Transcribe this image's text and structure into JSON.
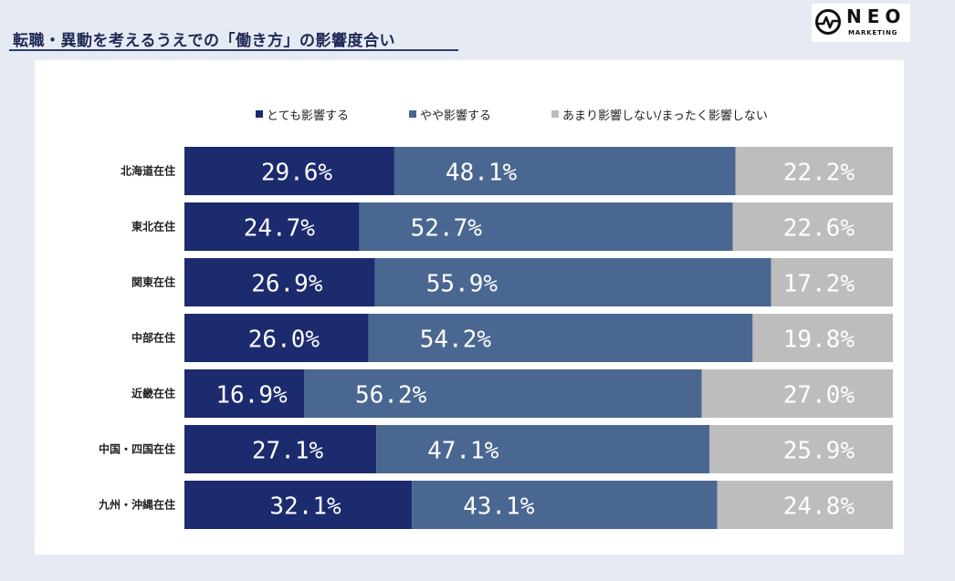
{
  "header": {
    "title": "転職・異動を考えるうえでの「働き方」の影響度合い"
  },
  "logo": {
    "word": "NEO",
    "sub": "MARKETING",
    "icon": "pulse-circle-icon"
  },
  "chart_data": {
    "type": "bar",
    "orientation": "horizontal",
    "stacked": true,
    "normalized": true,
    "legend_placement": "top",
    "categories": [
      "北海道在住",
      "東北在住",
      "関東在住",
      "中部在住",
      "近畿在住",
      "中国・四国在住",
      "九州・沖縄在住"
    ],
    "series": [
      {
        "name": "とても影響する",
        "color": "#1c2a6e",
        "values": [
          29.6,
          24.7,
          26.9,
          26.0,
          16.9,
          27.1,
          32.1
        ]
      },
      {
        "name": "やや影響する",
        "color": "#4a6791",
        "values": [
          48.1,
          52.7,
          55.9,
          54.2,
          56.2,
          47.1,
          43.1
        ]
      },
      {
        "name": "あまり影響しない/まったく影響しない",
        "color": "#bdbdbd",
        "values": [
          22.2,
          22.6,
          17.2,
          19.8,
          27.0,
          25.9,
          24.8
        ]
      }
    ],
    "labels": [
      [
        "29.6%",
        "48.1%",
        "22.2%"
      ],
      [
        "24.7%",
        "52.7%",
        "22.6%"
      ],
      [
        "26.9%",
        "55.9%",
        "17.2%"
      ],
      [
        "26.0%",
        "54.2%",
        "19.8%"
      ],
      [
        "16.9%",
        "56.2%",
        "27.0%"
      ],
      [
        "27.1%",
        "47.1%",
        "25.9%"
      ],
      [
        "32.1%",
        "43.1%",
        "24.8%"
      ]
    ]
  }
}
